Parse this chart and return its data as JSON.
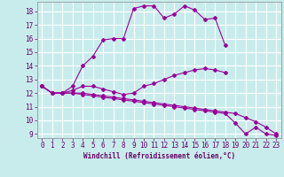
{
  "xlabel": "Windchill (Refroidissement éolien,°C)",
  "background_color": "#c8ecec",
  "grid_color": "#ffffff",
  "line_color": "#990099",
  "x_hours": [
    0,
    1,
    2,
    3,
    4,
    5,
    6,
    7,
    8,
    9,
    10,
    11,
    12,
    13,
    14,
    15,
    16,
    17,
    18,
    19,
    20,
    21,
    22,
    23
  ],
  "series1": [
    12.5,
    12.0,
    12.0,
    12.5,
    14.0,
    14.7,
    15.9,
    16.0,
    16.0,
    18.2,
    18.4,
    18.4,
    17.5,
    17.8,
    18.4,
    18.1,
    17.4,
    17.5,
    15.5,
    null,
    null,
    null,
    null,
    null
  ],
  "series2": [
    12.5,
    12.0,
    12.0,
    12.2,
    12.5,
    12.5,
    12.3,
    12.1,
    11.9,
    12.0,
    12.5,
    12.7,
    13.0,
    13.3,
    13.5,
    13.7,
    13.8,
    13.7,
    13.5,
    null,
    null,
    null,
    null,
    null
  ],
  "series3": [
    12.5,
    12.0,
    12.0,
    12.0,
    11.9,
    11.8,
    11.7,
    11.6,
    11.5,
    11.4,
    11.3,
    11.2,
    11.1,
    11.0,
    10.9,
    10.8,
    10.7,
    10.6,
    10.5,
    9.8,
    9.0,
    9.5,
    9.0,
    8.9
  ],
  "series4": [
    12.5,
    12.0,
    12.0,
    12.0,
    12.0,
    11.9,
    11.8,
    11.7,
    11.6,
    11.5,
    11.4,
    11.3,
    11.2,
    11.1,
    11.0,
    10.9,
    10.8,
    10.7,
    10.6,
    10.5,
    10.2,
    9.9,
    9.5,
    9.0
  ],
  "ylim": [
    9,
    19
  ],
  "xlim": [
    0,
    23
  ],
  "yticks": [
    9,
    10,
    11,
    12,
    13,
    14,
    15,
    16,
    17,
    18
  ],
  "xticks": [
    0,
    1,
    2,
    3,
    4,
    5,
    6,
    7,
    8,
    9,
    10,
    11,
    12,
    13,
    14,
    15,
    16,
    17,
    18,
    19,
    20,
    21,
    22,
    23
  ],
  "tick_fontsize": 5.5,
  "xlabel_fontsize": 5.5,
  "marker_size": 2.0,
  "line_width": 0.8
}
